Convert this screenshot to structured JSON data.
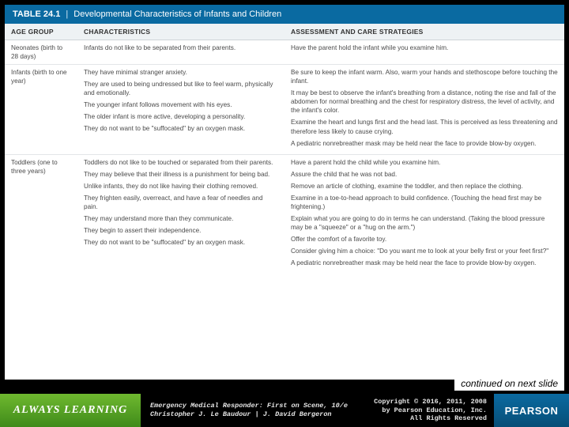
{
  "table": {
    "number": "TABLE 24.1",
    "separator": "|",
    "title": "Developmental Characteristics of Infants and Children",
    "columns": [
      "AGE GROUP",
      "CHARACTERISTICS",
      "ASSESSMENT AND CARE STRATEGIES"
    ],
    "rows": [
      {
        "age": "Neonates (birth to 28 days)",
        "characteristics": [
          "Infants do not like to be separated from their parents."
        ],
        "assessment": [
          "Have the parent hold the infant while you examine him."
        ]
      },
      {
        "age": "Infants (birth to one year)",
        "characteristics": [
          "They have minimal stranger anxiety.",
          "They are used to being undressed but like to feel warm, physically and emotionally.",
          "The younger infant follows movement with his eyes.",
          "The older infant is more active, developing a personality.",
          "They do not want to be \"suffocated\" by an oxygen mask."
        ],
        "assessment": [
          "Be sure to keep the infant warm. Also, warm your hands and stethoscope before touching the infant.",
          "It may be best to observe the infant's breathing from a distance, noting the rise and fall of the abdomen for normal breathing and the chest for respiratory distress, the level of activity, and the infant's color.",
          "Examine the heart and lungs first and the head last. This is perceived as less threatening and therefore less likely to cause crying.",
          "A pediatric nonrebreather mask may be held near the face to provide blow-by oxygen."
        ]
      },
      {
        "age": "Toddlers (one to three years)",
        "characteristics": [
          "Toddlers do not like to be touched or separated from their parents.",
          "They may believe that their illness is a punishment for being bad.",
          "Unlike infants, they do not like having their clothing removed.",
          "They frighten easily, overreact, and have a fear of needles and pain.",
          "They may understand more than they communicate.",
          "They begin to assert their independence.",
          "They do not want to be \"suffocated\" by an oxygen mask."
        ],
        "assessment": [
          "Have a parent hold the child while you examine him.",
          "Assure the child that he was not bad.",
          "Remove an article of clothing, examine the toddler, and then replace the clothing.",
          "Examine in a toe-to-head approach to build confidence. (Touching the head first may be frightening.)",
          "Explain what you are going to do in terms he can understand. (Taking the blood pressure may be a \"squeeze\" or a \"hug on the arm.\")",
          "Offer the comfort of a favorite toy.",
          "Consider giving him a choice: \"Do you want me to look at your belly first or your feet first?\"",
          "A pediatric nonrebreather mask may be held near the face to provide blow-by oxygen."
        ]
      }
    ]
  },
  "continued": "continued on next slide",
  "footer": {
    "always": "ALWAYS LEARNING",
    "book_line1": "Emergency Medical Responder: First on Scene, 10/e",
    "book_line2": "Christopher J. Le Baudour | J. David Bergeron",
    "copyright_l1": "Copyright © 2016, 2011, 2008",
    "copyright_l2": "by Pearson Education, Inc.",
    "copyright_l3": "All Rights Reserved",
    "pearson": "PEARSON"
  },
  "colors": {
    "header_bg": "#0a6aa1",
    "thead_bg": "#eef2f4",
    "row_border": "#e3e6e8",
    "always_grad_top": "#6fb92f",
    "always_grad_bot": "#3f8a1a",
    "pearson_grad_top": "#0a6aa1",
    "pearson_grad_bot": "#074e77"
  }
}
